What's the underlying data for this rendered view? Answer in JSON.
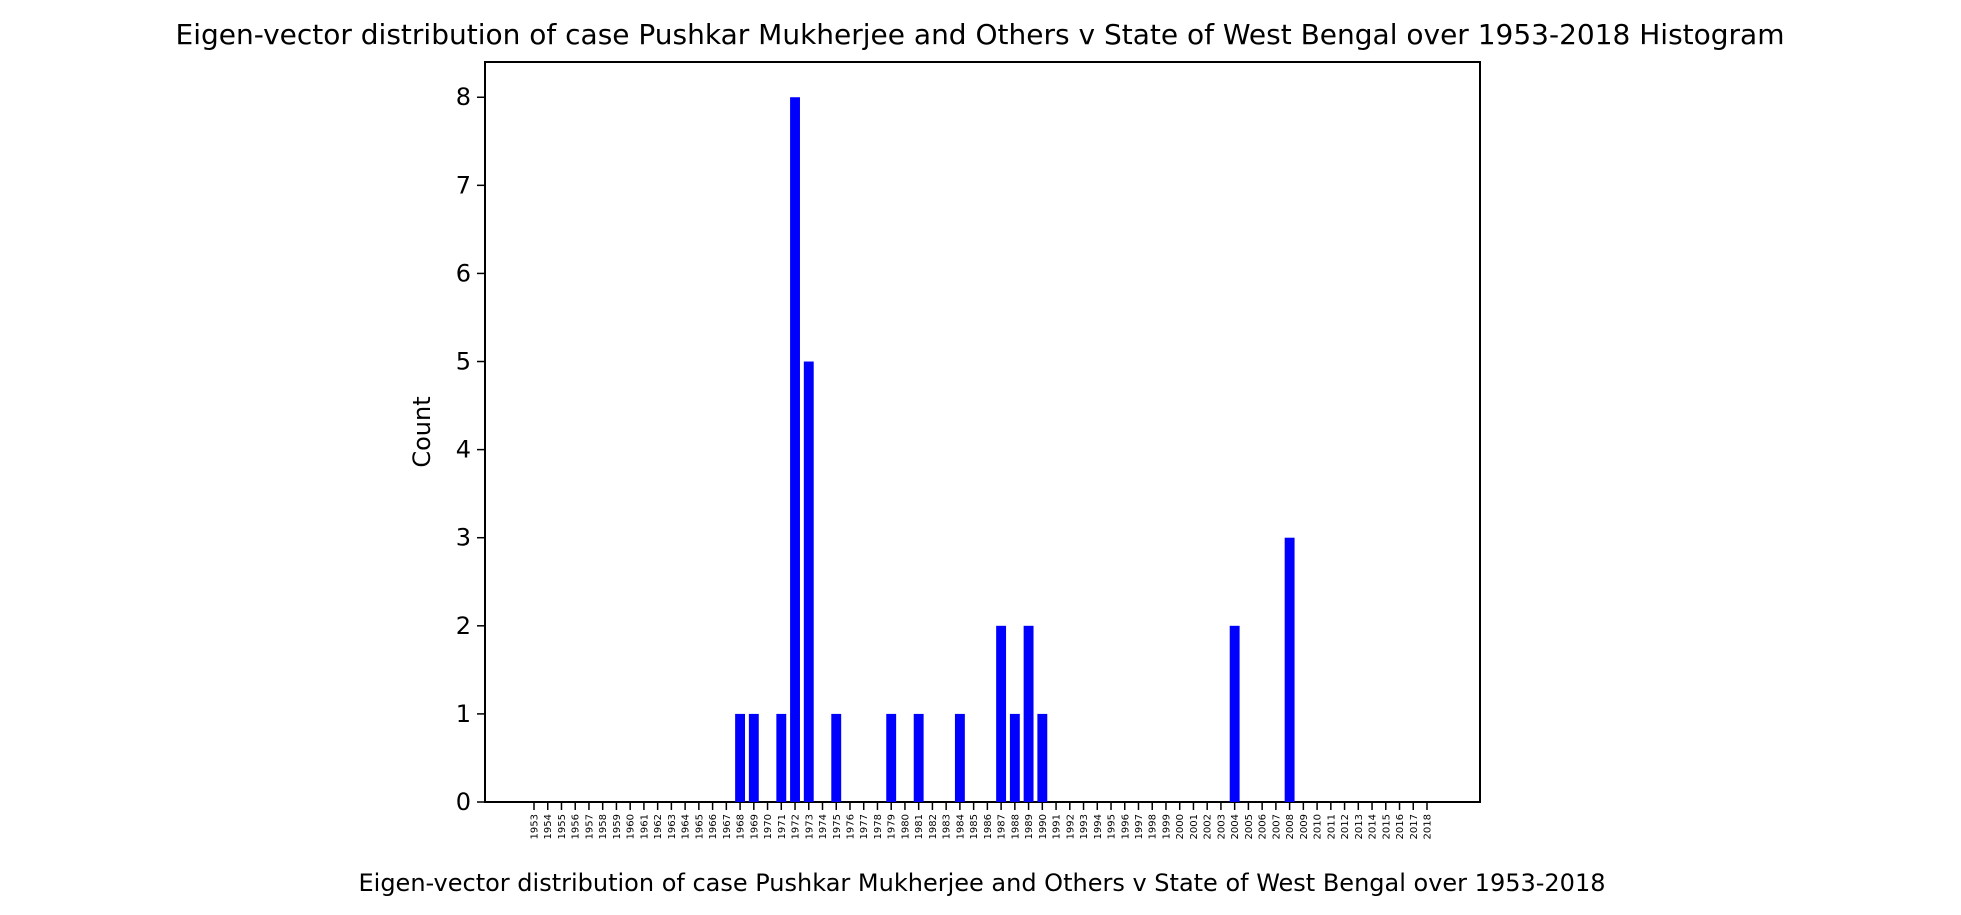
{
  "chart_data": {
    "type": "bar",
    "title": "Eigen-vector distribution of case Pushkar Mukherjee and Others v State of West Bengal over 1953-2018 Histogram",
    "xlabel": "Eigen-vector distribution of case Pushkar Mukherjee and Others v State of West Bengal over 1953-2018",
    "ylabel": "Count",
    "ylim": [
      0,
      8.4
    ],
    "yticks": [
      "0",
      "1",
      "2",
      "3",
      "4",
      "5",
      "6",
      "7",
      "8"
    ],
    "categories": [
      "1953",
      "1954",
      "1955",
      "1956",
      "1957",
      "1958",
      "1959",
      "1960",
      "1961",
      "1962",
      "1963",
      "1964",
      "1965",
      "1966",
      "1967",
      "1968",
      "1969",
      "1970",
      "1971",
      "1972",
      "1973",
      "1974",
      "1975",
      "1976",
      "1977",
      "1978",
      "1979",
      "1980",
      "1981",
      "1982",
      "1983",
      "1984",
      "1985",
      "1986",
      "1987",
      "1988",
      "1989",
      "1990",
      "1991",
      "1992",
      "1993",
      "1994",
      "1995",
      "1996",
      "1997",
      "1998",
      "1999",
      "2000",
      "2001",
      "2002",
      "2003",
      "2004",
      "2005",
      "2006",
      "2007",
      "2008",
      "2009",
      "2010",
      "2011",
      "2012",
      "2013",
      "2014",
      "2015",
      "2016",
      "2017",
      "2018"
    ],
    "values": [
      0,
      0,
      0,
      0,
      0,
      0,
      0,
      0,
      0,
      0,
      0,
      0,
      0,
      0,
      0,
      1,
      1,
      0,
      1,
      8,
      5,
      0,
      1,
      0,
      0,
      0,
      1,
      0,
      1,
      0,
      0,
      1,
      0,
      0,
      2,
      1,
      2,
      1,
      0,
      0,
      0,
      0,
      0,
      0,
      0,
      0,
      0,
      0,
      0,
      0,
      0,
      2,
      0,
      0,
      0,
      3,
      0,
      0,
      0,
      0,
      0,
      0,
      0,
      0,
      0,
      0
    ],
    "bar_color": "#0000ff",
    "grid": false,
    "legend": "none"
  }
}
